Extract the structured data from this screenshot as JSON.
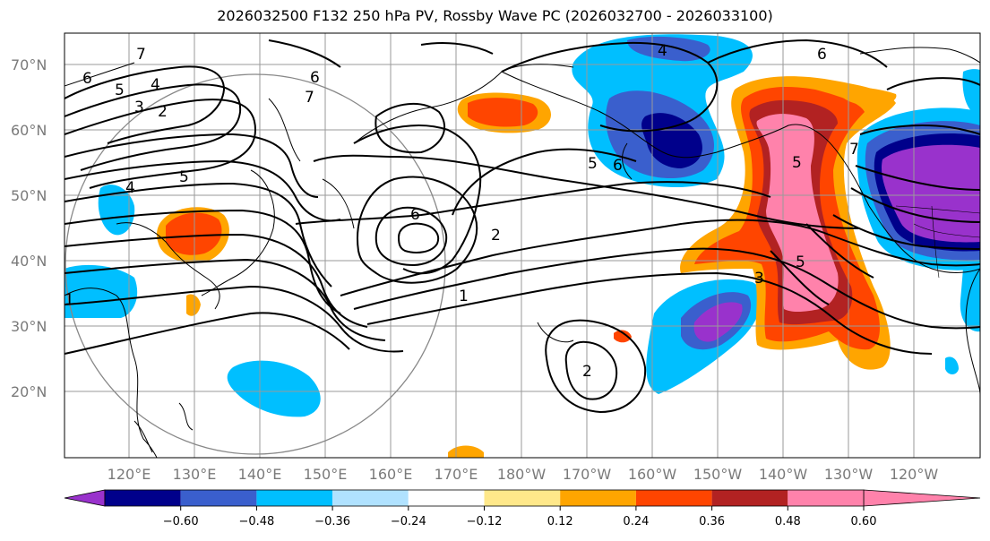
{
  "title": "2026032500 F132 250 hPa PV, Rossby Wave PC (2026032700 - 2026033100)",
  "lat_labels": [
    "70°N",
    "60°N",
    "50°N",
    "40°N",
    "30°N",
    "20°N"
  ],
  "lon_labels": [
    "120°E",
    "130°E",
    "140°E",
    "150°E",
    "160°E",
    "170°E",
    "180°W",
    "170°W",
    "160°W",
    "150°W",
    "140°W",
    "130°W",
    "120°W"
  ],
  "colorbar": {
    "ticks": [
      "−0.60",
      "−0.48",
      "−0.36",
      "−0.24",
      "−0.12",
      "0.12",
      "0.24",
      "0.36",
      "0.48",
      "0.60"
    ],
    "colors": [
      "#9932cc",
      "#00008b",
      "#3a5fcd",
      "#00bfff",
      "#b0e2ff",
      "#ffffff",
      "#ffe88a",
      "#ffa500",
      "#ff4500",
      "#b22222",
      "#ff82ab"
    ]
  },
  "contour_labels": [
    "6",
    "5",
    "4",
    "3",
    "2",
    "7",
    "6",
    "5",
    "4",
    "7",
    "6",
    "2",
    "1",
    "2",
    "5",
    "6",
    "3",
    "4",
    "5",
    "6",
    "5",
    "7",
    "1"
  ]
}
